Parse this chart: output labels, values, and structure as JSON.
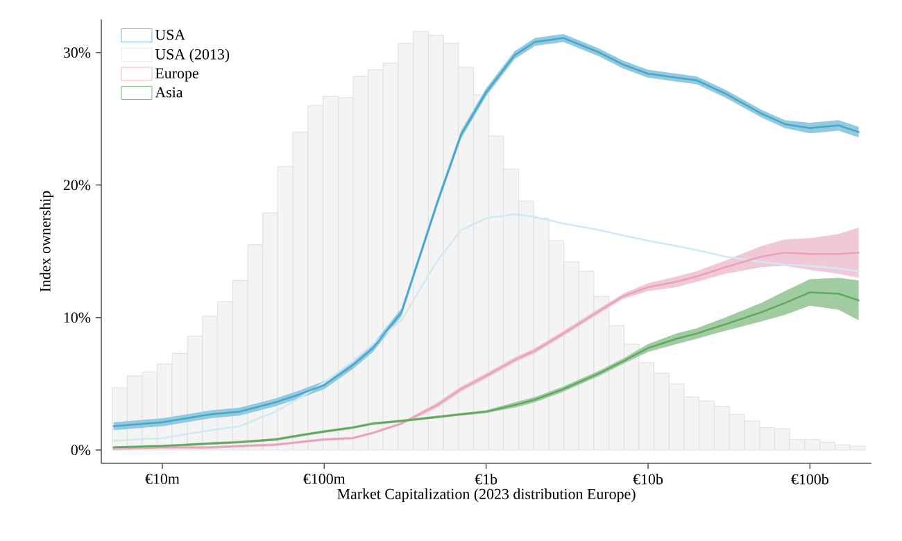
{
  "chart_data": {
    "type": "line",
    "xlabel": "Market Capitalization (2023 distribution Europe)",
    "ylabel": "Index ownership",
    "log": "x",
    "legend": "top left",
    "xlim": [
      4200000.0,
      240000000000.0
    ],
    "ylim": [
      -1,
      32.5
    ],
    "xticks": [
      {
        "value": 10000000.0,
        "label": "€10m"
      },
      {
        "value": 100000000.0,
        "label": "€100m"
      },
      {
        "value": 1000000000.0,
        "label": "€1b"
      },
      {
        "value": 10000000000.0,
        "label": "€10b"
      },
      {
        "value": 100000000000.0,
        "label": "€100b"
      }
    ],
    "yticks": [
      {
        "value": 0,
        "label": "0%"
      },
      {
        "value": 10,
        "label": "10%"
      },
      {
        "value": 20,
        "label": "20%"
      },
      {
        "value": 30,
        "label": "30%"
      }
    ],
    "x": [
      5000000.0,
      10000000.0,
      20000000.0,
      30000000.0,
      50000000.0,
      70000000.0,
      100000000.0,
      150000000.0,
      200000000.0,
      300000000.0,
      500000000.0,
      700000000.0,
      1000000000.0,
      1500000000.0,
      2000000000.0,
      3000000000.0,
      5000000000.0,
      7000000000.0,
      10000000000.0,
      15000000000.0,
      20000000000.0,
      30000000000.0,
      50000000000.0,
      70000000000.0,
      100000000000.0,
      150000000000.0,
      200000000000.0
    ],
    "series": [
      {
        "type": "histogram",
        "color": "#f4f4f4",
        "bins": [
          4900000.0,
          6070000.0,
          7520000.0,
          9310000.0,
          11500000.0,
          14300000.0,
          17700000.0,
          21900000.0,
          27200000.0,
          33700000.0,
          41700000.0,
          51600000.0,
          64000000.0,
          79300000.0,
          98200000.0,
          122000000.0,
          151000000.0,
          187000000.0,
          231000000.0,
          286000000.0,
          355000000.0,
          440000000.0,
          545000000.0,
          675000000.0,
          836000000.0,
          1040000000.0,
          1280000000.0,
          1590000000.0,
          1970000000.0,
          2440000000.0,
          3020000000.0,
          3740000000.0,
          4630000000.0,
          5740000000.0,
          7110000000.0,
          8810000000.0,
          10900000000.0,
          13500000000.0,
          16700000000.0,
          20700000000.0,
          25700000000.0,
          31800000000.0,
          39400000000.0,
          48900000000.0,
          60500000000.0,
          75000000000.0,
          92900000000.0,
          115000000000.0,
          143000000000.0,
          177000000000.0,
          219000000000.0
        ],
        "values": [
          4.7,
          5.6,
          5.9,
          6.5,
          7.3,
          8.6,
          10.1,
          11.2,
          12.8,
          15.5,
          17.9,
          21.4,
          24.0,
          26.0,
          26.7,
          26.6,
          28.2,
          28.7,
          29.2,
          30.7,
          31.6,
          31.3,
          30.7,
          28.9,
          26.8,
          23.7,
          21.2,
          18.8,
          17.5,
          15.8,
          14.2,
          13.5,
          11.6,
          9.4,
          8.0,
          6.6,
          5.8,
          5.0,
          4.0,
          3.7,
          3.3,
          2.7,
          2.2,
          1.7,
          1.6,
          0.8,
          0.8,
          0.6,
          0.4,
          0.3
        ]
      },
      {
        "name": "USA (2013)",
        "color": "#d3e8f2",
        "values": [
          0.7,
          0.9,
          1.5,
          1.8,
          2.9,
          3.9,
          5.1,
          6.7,
          8.0,
          9.8,
          14.3,
          16.6,
          17.5,
          17.8,
          17.6,
          17.1,
          16.6,
          16.2,
          15.8,
          15.4,
          15.1,
          14.6,
          14.2,
          14.0,
          13.9,
          13.7,
          13.5
        ]
      },
      {
        "name": "Europe",
        "color": "#e7a3bb",
        "values": [
          0.1,
          0.2,
          0.2,
          0.3,
          0.4,
          0.6,
          0.8,
          0.9,
          1.3,
          2.0,
          3.4,
          4.6,
          5.6,
          6.8,
          7.5,
          8.8,
          10.5,
          11.6,
          12.3,
          12.7,
          13.1,
          13.8,
          14.6,
          14.9,
          14.8,
          14.8,
          14.9
        ],
        "lower": [
          0.0,
          0.1,
          0.1,
          0.2,
          0.3,
          0.5,
          0.7,
          0.8,
          1.2,
          1.9,
          3.2,
          4.4,
          5.4,
          6.6,
          7.3,
          8.6,
          10.3,
          11.4,
          12.0,
          12.3,
          12.7,
          13.3,
          13.8,
          13.9,
          13.6,
          13.3,
          13.0
        ],
        "upper": [
          0.2,
          0.3,
          0.3,
          0.4,
          0.5,
          0.7,
          0.9,
          1.0,
          1.4,
          2.1,
          3.6,
          4.8,
          5.8,
          7.0,
          7.7,
          9.0,
          10.7,
          11.8,
          12.6,
          13.1,
          13.5,
          14.3,
          15.4,
          15.9,
          16.0,
          16.3,
          16.8
        ]
      },
      {
        "name": "Asia",
        "color": "#62a862",
        "values": [
          0.2,
          0.3,
          0.5,
          0.6,
          0.8,
          1.1,
          1.4,
          1.7,
          2.0,
          2.2,
          2.5,
          2.7,
          2.9,
          3.4,
          3.8,
          4.6,
          5.8,
          6.7,
          7.7,
          8.4,
          8.8,
          9.5,
          10.4,
          11.1,
          11.9,
          11.8,
          11.3
        ],
        "lower": [
          0.1,
          0.2,
          0.4,
          0.5,
          0.7,
          1.0,
          1.3,
          1.6,
          1.9,
          2.1,
          2.4,
          2.6,
          2.8,
          3.2,
          3.6,
          4.4,
          5.6,
          6.5,
          7.4,
          8.0,
          8.4,
          9.0,
          9.7,
          10.2,
          10.9,
          10.6,
          9.8
        ],
        "upper": [
          0.3,
          0.4,
          0.6,
          0.7,
          0.9,
          1.2,
          1.5,
          1.8,
          2.1,
          2.3,
          2.6,
          2.8,
          3.0,
          3.6,
          4.0,
          4.8,
          6.0,
          6.9,
          8.0,
          8.8,
          9.2,
          10.0,
          11.1,
          12.0,
          12.9,
          13.0,
          12.8
        ]
      },
      {
        "name": "USA",
        "color": "#4aa6cc",
        "values": [
          1.8,
          2.1,
          2.7,
          2.9,
          3.6,
          4.2,
          4.9,
          6.4,
          7.7,
          10.4,
          18.7,
          23.8,
          27.0,
          29.8,
          30.8,
          31.1,
          30.0,
          29.1,
          28.4,
          28.1,
          27.9,
          26.9,
          25.4,
          24.6,
          24.3,
          24.5,
          24.0
        ],
        "lower": [
          1.5,
          1.8,
          2.4,
          2.6,
          3.3,
          3.9,
          4.6,
          6.1,
          7.4,
          10.1,
          18.4,
          23.5,
          26.7,
          29.5,
          30.5,
          30.8,
          29.7,
          28.8,
          28.1,
          27.8,
          27.6,
          26.6,
          25.1,
          24.3,
          23.9,
          24.1,
          23.6
        ],
        "upper": [
          2.1,
          2.4,
          3.0,
          3.2,
          3.9,
          4.5,
          5.2,
          6.7,
          8.0,
          10.7,
          19.0,
          24.1,
          27.3,
          30.1,
          31.1,
          31.4,
          30.3,
          29.4,
          28.7,
          28.4,
          28.2,
          27.2,
          25.7,
          24.9,
          24.7,
          24.9,
          24.4
        ]
      }
    ]
  }
}
